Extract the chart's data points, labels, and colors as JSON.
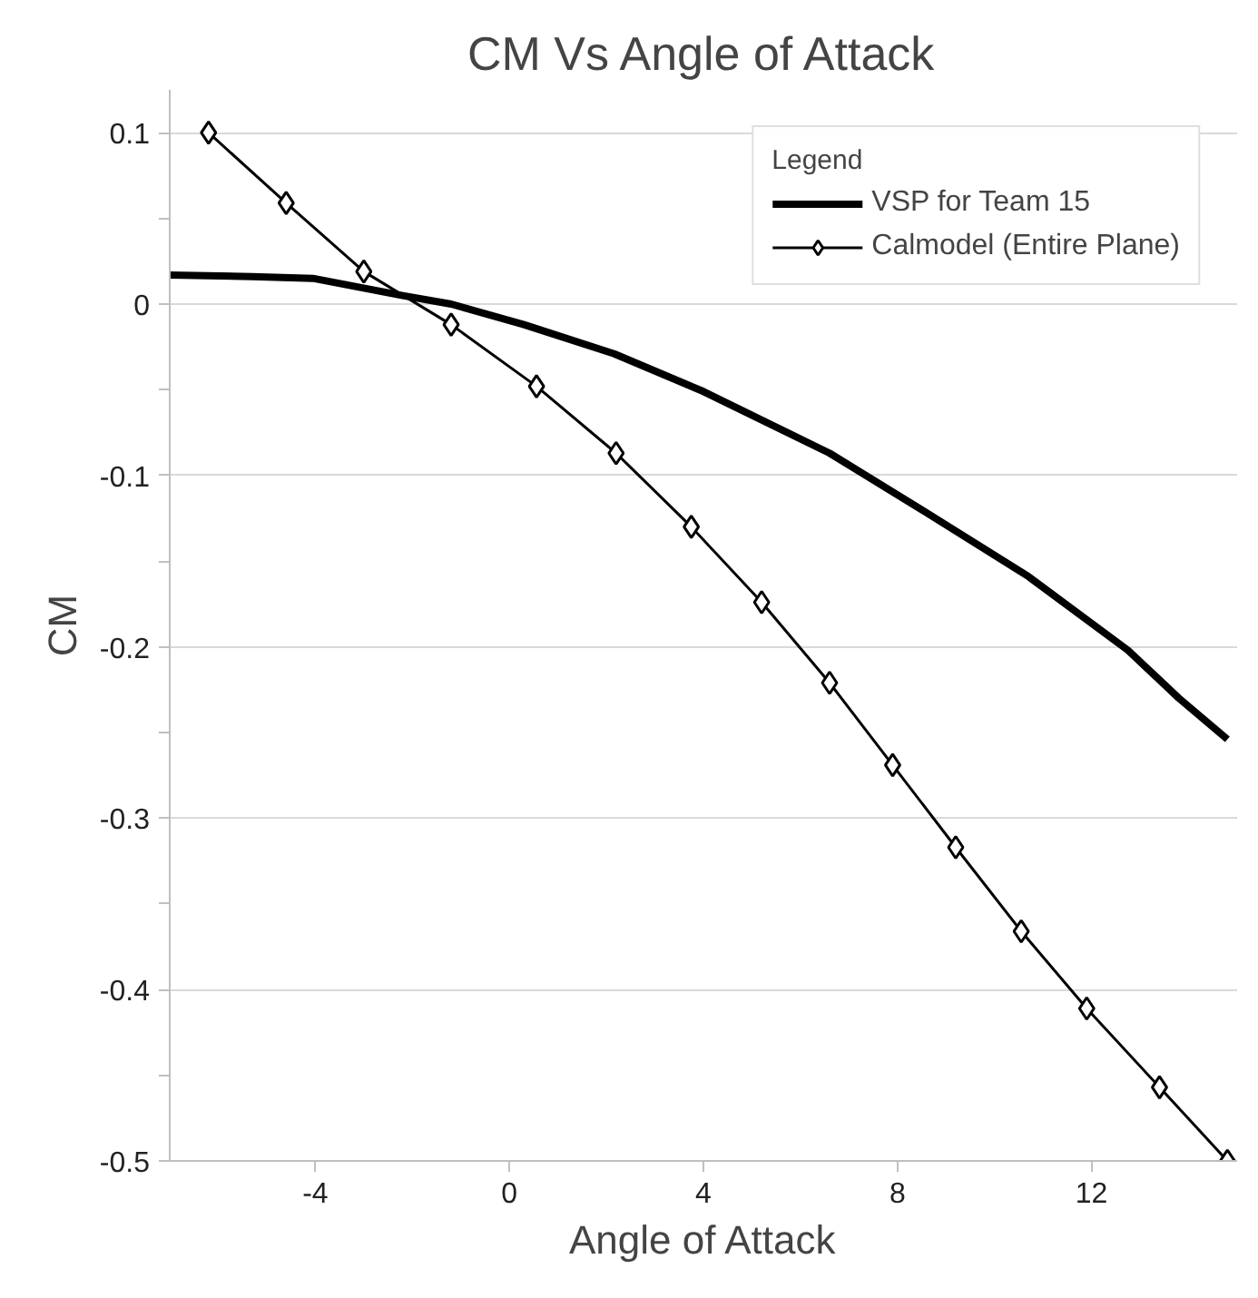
{
  "chart_data": {
    "type": "line",
    "title": "CM Vs Angle of Attack",
    "xlabel": "Angle of Attack",
    "ylabel": "CM",
    "legend_title": "Legend",
    "xlim": [
      -7,
      15
    ],
    "xticks": [
      -4,
      0,
      4,
      8,
      12
    ],
    "ylim": [
      -0.5,
      0.125
    ],
    "yticks": [
      0.1,
      {
        "value": 0.05,
        "label": null
      },
      0,
      {
        "value": -0.05,
        "label": null
      },
      -0.1,
      {
        "value": -0.15,
        "label": null
      },
      -0.2,
      {
        "value": -0.25,
        "label": null
      },
      -0.3,
      {
        "value": -0.35,
        "label": null
      },
      -0.4,
      {
        "value": -0.45,
        "label": null
      },
      -0.5
    ],
    "grid": "y",
    "legend": "top right",
    "series": [
      {
        "name": "VSP for Team 15",
        "color": "#000000",
        "marker": "none",
        "x": [
          -7,
          -5.3,
          -4.05,
          -2.2,
          -1.2,
          0.3,
          2.16,
          4.0,
          6.6,
          8.5,
          10.7,
          12.75,
          13.8,
          14.8
        ],
        "values": [
          0.017,
          0.016,
          0.015,
          0.005,
          0.0,
          -0.012,
          -0.029,
          -0.051,
          -0.087,
          -0.12,
          -0.159,
          -0.202,
          -0.23,
          -0.254
        ]
      },
      {
        "name": "Calmodel (Entire Plane)",
        "color": "#000000",
        "marker": "diamond",
        "x": [
          -6.2,
          -4.6,
          -3.0,
          -1.2,
          0.56,
          2.2,
          3.75,
          5.2,
          6.6,
          7.9,
          9.2,
          10.55,
          11.9,
          13.4,
          14.8
        ],
        "values": [
          0.1,
          0.059,
          0.019,
          -0.012,
          -0.048,
          -0.087,
          -0.13,
          -0.174,
          -0.221,
          -0.269,
          -0.317,
          -0.366,
          -0.411,
          -0.457,
          -0.5
        ]
      }
    ]
  }
}
